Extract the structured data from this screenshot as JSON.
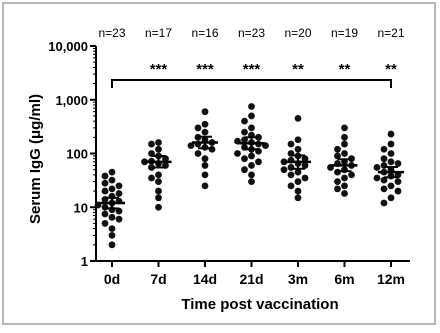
{
  "chart_data": {
    "type": "scatter",
    "title": "",
    "xlabel": "Time post vaccination",
    "ylabel": "Serum IgG (μg/ml)",
    "yscale": "log",
    "ylim": [
      1,
      10000
    ],
    "y_ticks": [
      "1",
      "10",
      "100",
      "1,000",
      "10,000"
    ],
    "categories": [
      "0d",
      "7d",
      "14d",
      "21d",
      "3m",
      "6m",
      "12m"
    ],
    "n_labels": [
      "n=23",
      "n=17",
      "n=16",
      "n=23",
      "n=20",
      "n=19",
      "n=21"
    ],
    "significance_bracket": {
      "from": "0d",
      "to": "12m"
    },
    "significance": [
      "",
      "***",
      "***",
      "***",
      "**",
      "**",
      "**"
    ],
    "groups": [
      {
        "category": "0d",
        "mean": 12,
        "sem_low": 9.5,
        "sem_high": 15,
        "points": [
          45,
          38,
          32,
          28,
          25,
          22,
          20,
          18,
          16,
          14,
          13,
          12,
          11,
          10,
          9,
          8.5,
          7.5,
          6.5,
          6,
          5,
          4,
          3,
          2
        ]
      },
      {
        "category": "7d",
        "mean": 70,
        "sem_low": 55,
        "sem_high": 90,
        "points": [
          160,
          150,
          120,
          100,
          90,
          80,
          72,
          70,
          65,
          60,
          55,
          40,
          35,
          30,
          20,
          15,
          10
        ]
      },
      {
        "category": "14d",
        "mean": 160,
        "sem_low": 125,
        "sem_high": 205,
        "points": [
          600,
          350,
          300,
          250,
          200,
          180,
          160,
          150,
          140,
          130,
          120,
          100,
          80,
          60,
          40,
          25
        ]
      },
      {
        "category": "21d",
        "mean": 155,
        "sem_low": 120,
        "sem_high": 200,
        "points": [
          750,
          500,
          400,
          300,
          250,
          220,
          200,
          180,
          170,
          160,
          150,
          140,
          130,
          120,
          110,
          100,
          90,
          80,
          70,
          60,
          50,
          40,
          30
        ]
      },
      {
        "category": "3m",
        "mean": 70,
        "sem_low": 52,
        "sem_high": 92,
        "points": [
          450,
          180,
          150,
          120,
          100,
          90,
          80,
          75,
          70,
          65,
          60,
          55,
          50,
          45,
          40,
          35,
          30,
          25,
          20,
          15
        ]
      },
      {
        "category": "6m",
        "mean": 60,
        "sem_low": 47,
        "sem_high": 78,
        "points": [
          300,
          200,
          150,
          120,
          100,
          90,
          80,
          70,
          65,
          60,
          55,
          50,
          45,
          40,
          35,
          30,
          25,
          22,
          18
        ]
      },
      {
        "category": "12m",
        "mean": 45,
        "sem_low": 36,
        "sem_high": 56,
        "points": [
          230,
          150,
          120,
          100,
          80,
          70,
          65,
          60,
          55,
          50,
          45,
          40,
          38,
          35,
          32,
          30,
          25,
          22,
          20,
          15,
          12
        ]
      }
    ]
  }
}
